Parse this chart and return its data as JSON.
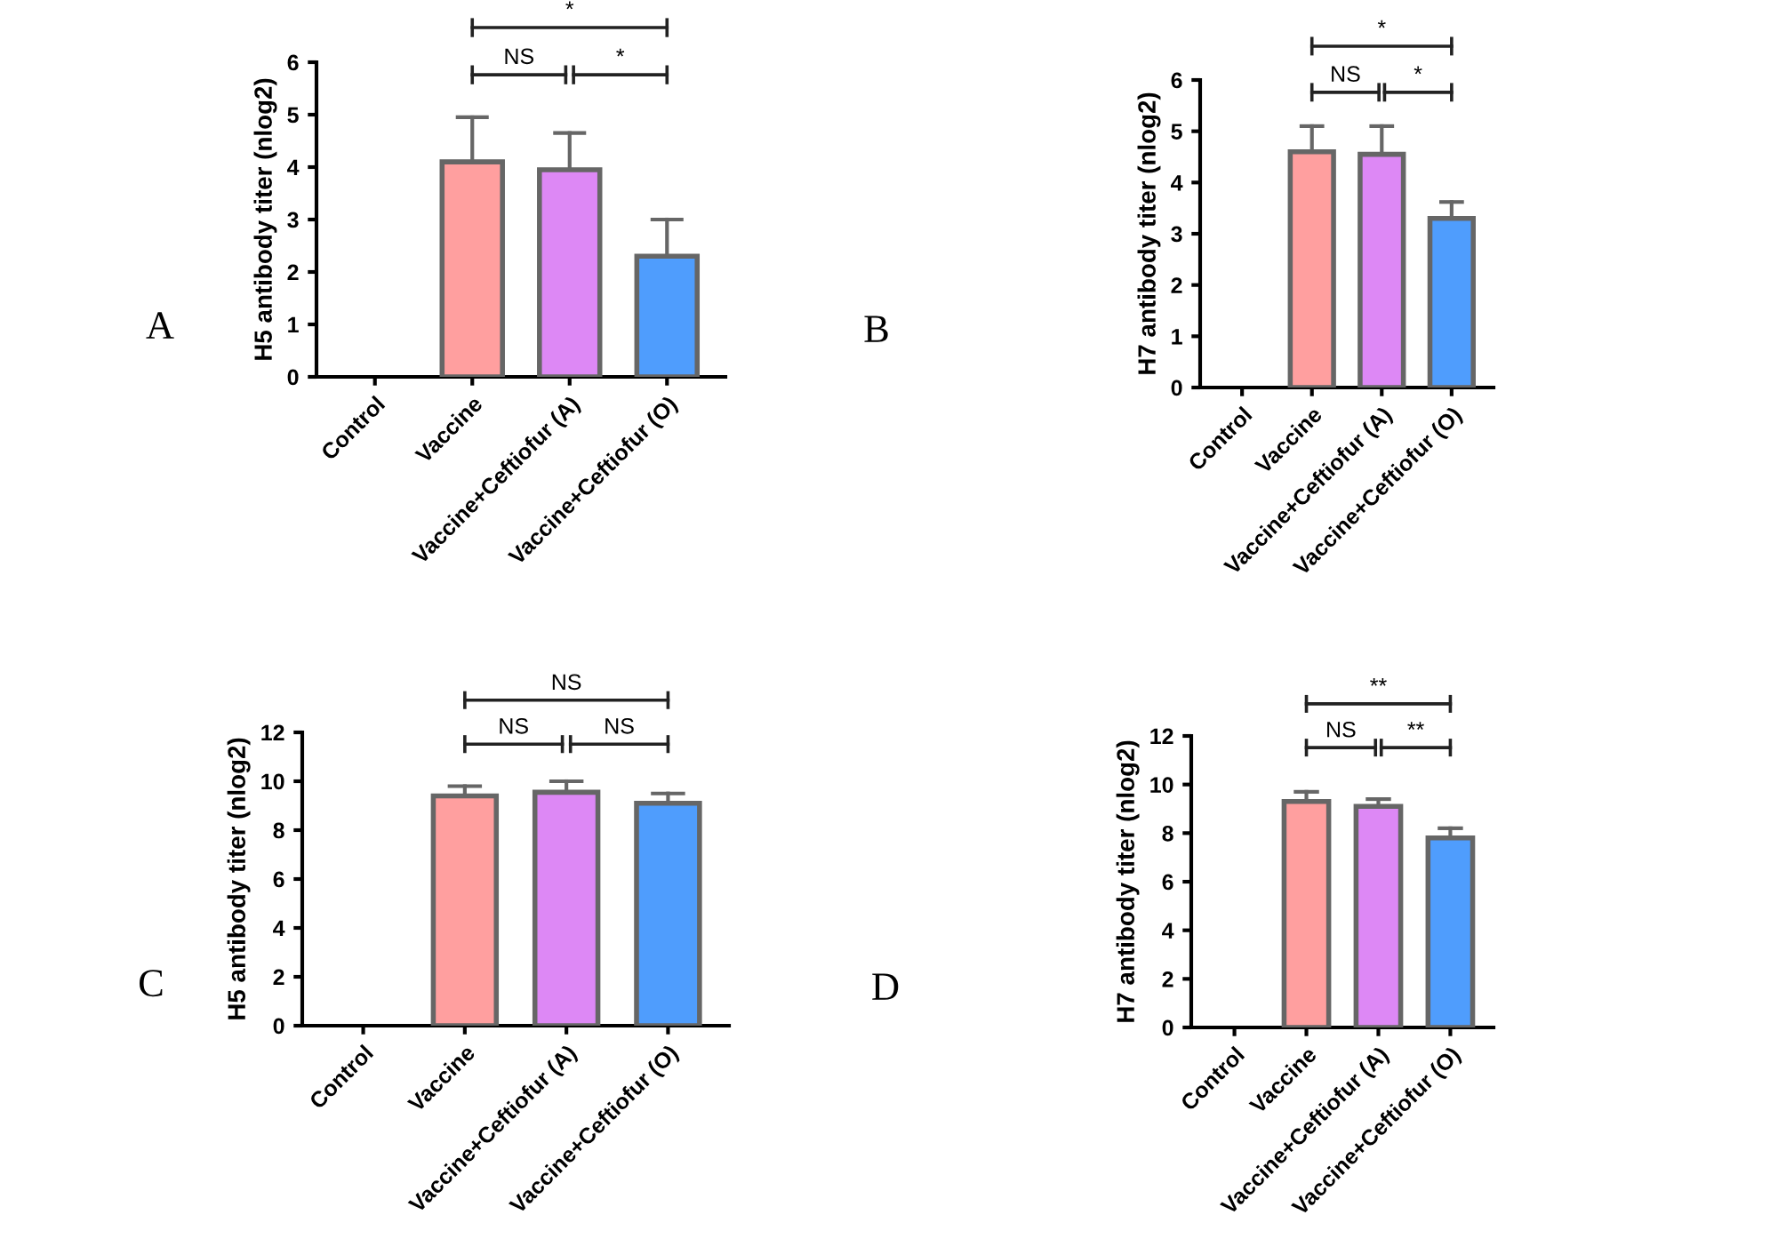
{
  "chart_data": [
    {
      "type": "bar",
      "ylabel": "H5 antibody titer (nlog2)",
      "categories": [
        "Control",
        "Vaccine",
        "Vaccine+Ceftiofur (A)",
        "Vaccine+Ceftiofur (O)"
      ],
      "values": [
        0,
        4.1,
        3.95,
        2.3
      ],
      "errors": [
        null,
        [
          4.1,
          4.95
        ],
        [
          3.95,
          4.65
        ],
        [
          2.3,
          3.0
        ]
      ],
      "colors": [
        "#ff9f9f",
        "#ff9f9f",
        "#dd88f5",
        "#4f9dfd"
      ],
      "ylim": [
        0,
        6
      ],
      "yticks": [
        0,
        1,
        2,
        3,
        4,
        5,
        6
      ],
      "grid": false,
      "annotations": [
        "A",
        "*",
        "NS",
        "*"
      ]
    },
    {
      "type": "bar",
      "ylabel": "H7 antibody titer (nlog2)",
      "categories": [
        "Control",
        "Vaccine",
        "Vaccine+Ceftiofur (A)",
        "Vaccine+Ceftiofur (O)"
      ],
      "values": [
        0,
        4.6,
        4.55,
        3.3
      ],
      "errors": [
        null,
        [
          4.6,
          5.1
        ],
        [
          4.55,
          5.1
        ],
        [
          3.3,
          3.62
        ]
      ],
      "colors": [
        "#ff9f9f",
        "#ff9f9f",
        "#dd88f5",
        "#4f9dfd"
      ],
      "ylim": [
        0,
        6
      ],
      "yticks": [
        0,
        1,
        2,
        3,
        4,
        5,
        6
      ],
      "grid": false,
      "annotations": [
        "B",
        "*",
        "NS",
        "*"
      ]
    },
    {
      "type": "bar",
      "ylabel": "H5 antibody titer (nlog2)",
      "categories": [
        "Control",
        "Vaccine",
        "Vaccine+Ceftiofur (A)",
        "Vaccine+Ceftiofur (O)"
      ],
      "values": [
        0,
        9.4,
        9.55,
        9.1
      ],
      "errors": [
        null,
        [
          9.4,
          9.8
        ],
        [
          9.55,
          10.0
        ],
        [
          9.1,
          9.5
        ]
      ],
      "colors": [
        "#ff9f9f",
        "#ff9f9f",
        "#dd88f5",
        "#4f9dfd"
      ],
      "ylim": [
        0,
        12
      ],
      "yticks": [
        0,
        2,
        4,
        6,
        8,
        10,
        12
      ],
      "grid": false,
      "annotations": [
        "C",
        "NS",
        "NS",
        "NS"
      ]
    },
    {
      "type": "bar",
      "ylabel": "H7 antibody titer (nlog2)",
      "categories": [
        "Control",
        "Vaccine",
        "Vaccine+Ceftiofur (A)",
        "Vaccine+Ceftiofur (O)"
      ],
      "values": [
        0,
        9.3,
        9.1,
        7.8
      ],
      "errors": [
        null,
        [
          9.3,
          9.7
        ],
        [
          9.1,
          9.4
        ],
        [
          7.8,
          8.2
        ]
      ],
      "colors": [
        "#ff9f9f",
        "#ff9f9f",
        "#dd88f5",
        "#4f9dfd"
      ],
      "ylim": [
        0,
        12
      ],
      "yticks": [
        0,
        2,
        4,
        6,
        8,
        10,
        12
      ],
      "grid": false,
      "annotations": [
        "D",
        "**",
        "NS",
        "**"
      ]
    }
  ]
}
